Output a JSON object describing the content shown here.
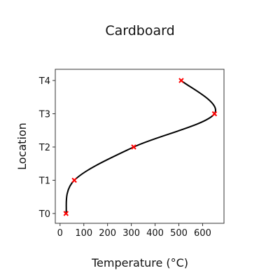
{
  "chart_data": {
    "type": "line",
    "title": "Cardboard",
    "xlabel": "Temperature (°C)",
    "ylabel": "Location",
    "xlim": [
      -20,
      690
    ],
    "x_ticks": [
      0,
      100,
      200,
      300,
      400,
      500,
      600
    ],
    "categories": [
      "T0",
      "T1",
      "T2",
      "T3",
      "T4"
    ],
    "series": [
      {
        "x": [
          25,
          60,
          310,
          650,
          510
        ],
        "y": [
          "T0",
          "T1",
          "T2",
          "T3",
          "T4"
        ],
        "line_color": "#000000",
        "marker_color": "#ff0000",
        "marker": "x"
      }
    ],
    "grid": false,
    "legend": "none"
  }
}
